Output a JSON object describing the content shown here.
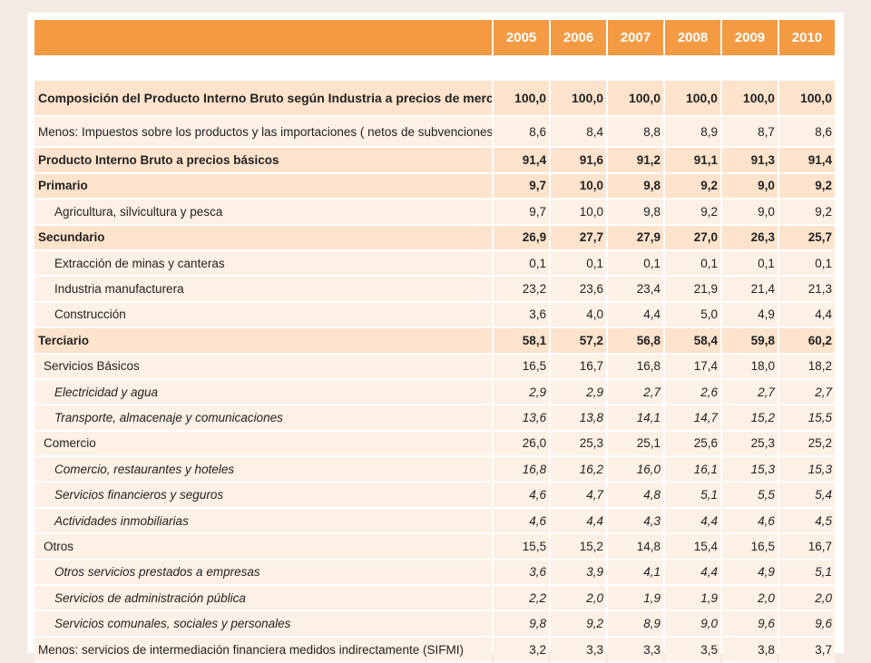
{
  "table": {
    "header_blank": "",
    "years": [
      "2005",
      "2006",
      "2007",
      "2008",
      "2009",
      "2010"
    ],
    "rows": [
      {
        "label": "Composición del Producto Interno Bruto según Industria a precios de mercado",
        "style": "top",
        "level": 0,
        "values": [
          "100,0",
          "100,0",
          "100,0",
          "100,0",
          "100,0",
          "100,0"
        ]
      },
      {
        "label": "Menos: Impuestos sobre los productos y las importaciones ( netos de subvenciones)",
        "style": "tall",
        "level": 0,
        "values": [
          "8,6",
          "8,4",
          "8,8",
          "8,9",
          "8,7",
          "8,6"
        ]
      },
      {
        "label": "Producto Interno Bruto a precios básicos",
        "style": "bold",
        "level": 0,
        "values": [
          "91,4",
          "91,6",
          "91,2",
          "91,1",
          "91,3",
          "91,4"
        ]
      },
      {
        "label": "Primario",
        "style": "bold",
        "level": 0,
        "values": [
          "9,7",
          "10,0",
          "9,8",
          "9,2",
          "9,0",
          "9,2"
        ]
      },
      {
        "label": "Agricultura, silvicultura y pesca",
        "style": "plain",
        "level": 2,
        "values": [
          "9,7",
          "10,0",
          "9,8",
          "9,2",
          "9,0",
          "9,2"
        ]
      },
      {
        "label": "Secundario",
        "style": "bold",
        "level": 0,
        "values": [
          "26,9",
          "27,7",
          "27,9",
          "27,0",
          "26,3",
          "25,7"
        ]
      },
      {
        "label": "Extracción de minas y canteras",
        "style": "plain",
        "level": 2,
        "values": [
          "0,1",
          "0,1",
          "0,1",
          "0,1",
          "0,1",
          "0,1"
        ]
      },
      {
        "label": "Industria manufacturera",
        "style": "plain",
        "level": 2,
        "values": [
          "23,2",
          "23,6",
          "23,4",
          "21,9",
          "21,4",
          "21,3"
        ]
      },
      {
        "label": "Construcción",
        "style": "plain",
        "level": 2,
        "values": [
          "3,6",
          "4,0",
          "4,4",
          "5,0",
          "4,9",
          "4,4"
        ]
      },
      {
        "label": "Terciario",
        "style": "bold",
        "level": 0,
        "values": [
          "58,1",
          "57,2",
          "56,8",
          "58,4",
          "59,8",
          "60,2"
        ]
      },
      {
        "label": "Servicios Básicos",
        "style": "plain",
        "level": 1,
        "values": [
          "16,5",
          "16,7",
          "16,8",
          "17,4",
          "18,0",
          "18,2"
        ]
      },
      {
        "label": "Electricidad y agua",
        "style": "italic",
        "level": 2,
        "values": [
          "2,9",
          "2,9",
          "2,7",
          "2,6",
          "2,7",
          "2,7"
        ]
      },
      {
        "label": "Transporte, almacenaje y comunicaciones",
        "style": "italic",
        "level": 2,
        "values": [
          "13,6",
          "13,8",
          "14,1",
          "14,7",
          "15,2",
          "15,5"
        ]
      },
      {
        "label": "Comercio",
        "style": "plain",
        "level": 1,
        "values": [
          "26,0",
          "25,3",
          "25,1",
          "25,6",
          "25,3",
          "25,2"
        ]
      },
      {
        "label": "Comercio, restaurantes y hoteles",
        "style": "italic",
        "level": 2,
        "values": [
          "16,8",
          "16,2",
          "16,0",
          "16,1",
          "15,3",
          "15,3"
        ]
      },
      {
        "label": "Servicios financieros y seguros",
        "style": "italic",
        "level": 2,
        "values": [
          "4,6",
          "4,7",
          "4,8",
          "5,1",
          "5,5",
          "5,4"
        ]
      },
      {
        "label": "Actividades inmobiliarias",
        "style": "italic",
        "level": 2,
        "values": [
          "4,6",
          "4,4",
          "4,3",
          "4,4",
          "4,6",
          "4,5"
        ]
      },
      {
        "label": "Otros",
        "style": "plain",
        "level": 1,
        "values": [
          "15,5",
          "15,2",
          "14,8",
          "15,4",
          "16,5",
          "16,7"
        ]
      },
      {
        "label": "Otros servicios prestados a empresas",
        "style": "italic",
        "level": 2,
        "values": [
          "3,6",
          "3,9",
          "4,1",
          "4,4",
          "4,9",
          "5,1"
        ]
      },
      {
        "label": "Servicios de administración pública",
        "style": "italic",
        "level": 2,
        "values": [
          "2,2",
          "2,0",
          "1,9",
          "1,9",
          "2,0",
          "2,0"
        ]
      },
      {
        "label": "Servicios comunales, sociales y personales",
        "style": "italic",
        "level": 2,
        "values": [
          "9,8",
          "9,2",
          "8,9",
          "9,0",
          "9,6",
          "9,6"
        ]
      },
      {
        "label": "Menos: servicios de intermediación financiera medidos indirectamente (SIFMI)",
        "style": "plain",
        "level": 0,
        "values": [
          "3,2",
          "3,3",
          "3,3",
          "3,5",
          "3,8",
          "3,7"
        ]
      }
    ]
  }
}
